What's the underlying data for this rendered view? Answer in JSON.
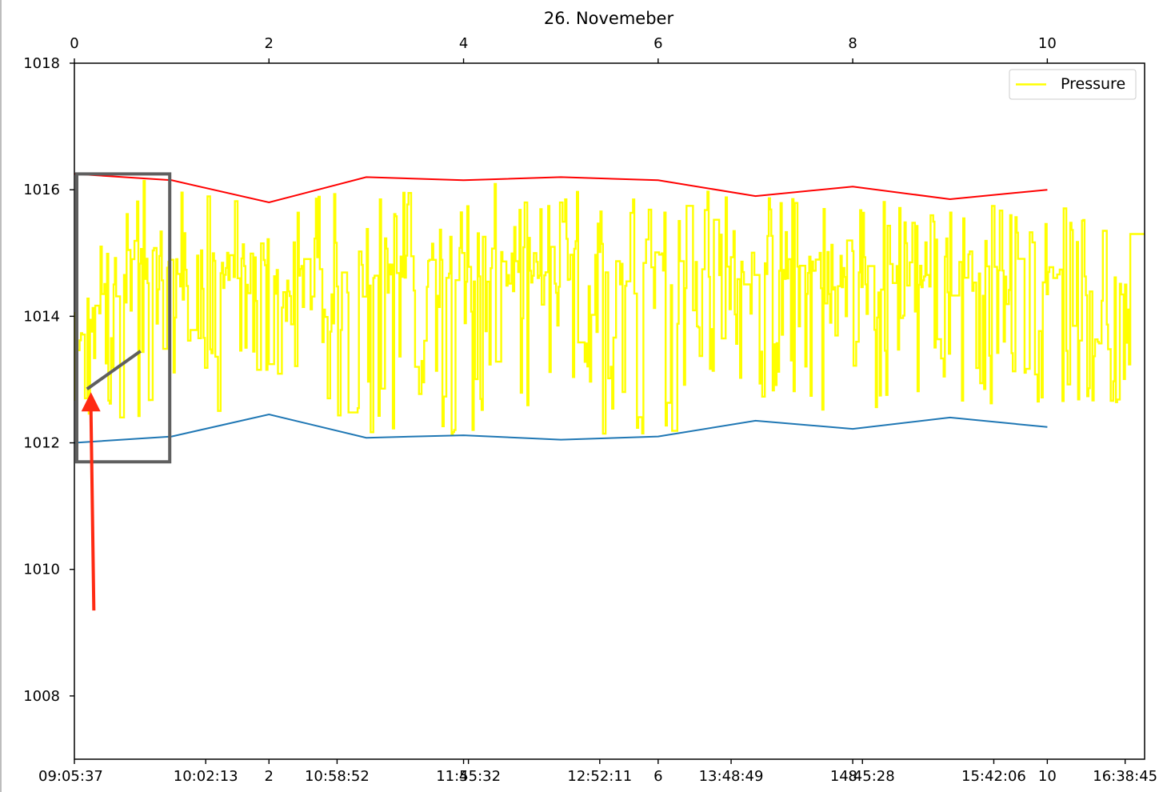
{
  "chart_data": {
    "type": "line",
    "title": "26. Novemeber",
    "xlabel": "",
    "ylabel": "",
    "grid": false,
    "legend_location": "upper right",
    "xlim": [
      0,
      11
    ],
    "ylim": [
      1007,
      1018
    ],
    "x_ticks_top": [
      0,
      2,
      4,
      6,
      8,
      10
    ],
    "x_ticks_bottom_numeric": [
      2,
      4,
      6,
      8,
      10
    ],
    "x_ticks_bottom_numeric_labels": [
      "2",
      "4",
      "6",
      "8",
      "10"
    ],
    "x_time_tick_positions": [
      0,
      1.35,
      2.7,
      4.05,
      5.4,
      6.75,
      8.1,
      9.45,
      10.8
    ],
    "x_time_tick_labels": [
      "09:05:37",
      "10:02:13",
      "10:58:52",
      "11:55:32",
      "12:52:11",
      "13:48:49",
      "14:45:28",
      "15:42:06",
      "16:38:45"
    ],
    "y_ticks": [
      1008,
      1010,
      1012,
      1014,
      1016,
      1018
    ],
    "y_tick_labels": [
      "1008",
      "1010",
      "1012",
      "1014",
      "1016",
      "1018"
    ],
    "series": [
      {
        "name": "Pressure",
        "color": "#ffff00",
        "kind": "noisy",
        "x_range": [
          0,
          11
        ],
        "anchor_x": [
          0,
          0.5,
          1,
          2,
          3,
          4,
          5,
          6,
          7,
          8,
          9,
          10,
          10.5,
          11
        ],
        "upper": [
          1014.0,
          1016.2,
          1016.1,
          1015.8,
          1016.1,
          1016.1,
          1016.1,
          1016.1,
          1016.0,
          1016.0,
          1015.8,
          1015.9,
          1015.5,
          1015.3
        ],
        "lower": [
          1012.1,
          1012.4,
          1012.3,
          1012.5,
          1012.1,
          1012.1,
          1012.1,
          1012.1,
          1012.7,
          1012.4,
          1012.6,
          1012.6,
          1012.3,
          1012.7
        ],
        "end_value": 1015.3
      },
      {
        "name": "",
        "color": "#ff0000",
        "x": [
          0,
          1,
          2,
          3,
          4,
          5,
          6,
          7,
          8,
          9,
          10
        ],
        "values": [
          1016.25,
          1016.15,
          1015.8,
          1016.2,
          1016.15,
          1016.2,
          1016.15,
          1015.9,
          1016.05,
          1015.85,
          1016.0
        ]
      },
      {
        "name": "",
        "color": "#1f77b4",
        "x": [
          0,
          1,
          2,
          3,
          4,
          5,
          6,
          7,
          8,
          9,
          10
        ],
        "values": [
          1012.0,
          1012.1,
          1012.45,
          1012.08,
          1012.12,
          1012.05,
          1012.1,
          1012.35,
          1012.22,
          1012.4,
          1012.25
        ]
      }
    ],
    "annotations": [
      {
        "name": "highlight-box",
        "color": "#5f5f5f",
        "x0": 0.0,
        "x1": 0.98,
        "y0": 1011.7,
        "y1": 1016.25
      },
      {
        "name": "trend-segment",
        "color": "#5f5f5f",
        "x0": 0.13,
        "y0": 1012.85,
        "x1": 0.68,
        "y1": 1013.45
      },
      {
        "name": "red-arrow",
        "color": "#ff2a12",
        "x0": 0.2,
        "y0": 1009.35,
        "x1": 0.17,
        "y1": 1012.8
      }
    ]
  }
}
